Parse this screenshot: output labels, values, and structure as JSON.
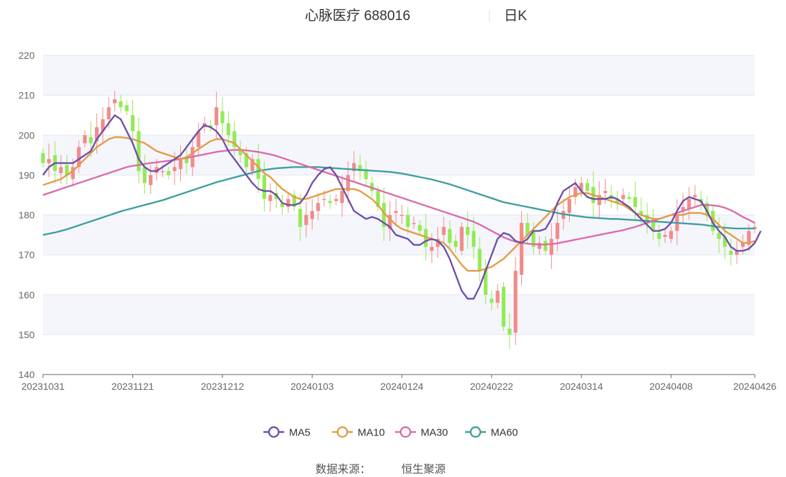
{
  "chart_data": {
    "type": "candlestick",
    "title": "心脉医疗 688016",
    "period": "日K",
    "yticks": [
      140,
      150,
      160,
      170,
      180,
      190,
      200,
      210,
      220
    ],
    "ylim": [
      140,
      220
    ],
    "xtick_labels": [
      "20231031",
      "20231121",
      "20231212",
      "20240103",
      "20240124",
      "20240222",
      "20240314",
      "20240408",
      "20240426"
    ],
    "xtick_index": [
      0,
      15,
      30,
      45,
      60,
      75,
      90,
      105,
      119
    ],
    "n_days": 120,
    "colors": {
      "up": "#f28b8b",
      "down": "#93ea56",
      "ma5": "#6f4ea8",
      "ma10": "#e49b45",
      "ma30": "#db6aae",
      "ma60": "#3e9ea0"
    },
    "legend": [
      "MA5",
      "MA10",
      "MA30",
      "MA60"
    ],
    "closes": [
      193,
      194,
      191,
      192,
      190,
      192,
      197,
      200,
      198,
      202,
      204,
      207,
      209,
      207,
      206,
      201,
      191,
      188,
      190,
      192,
      191,
      190,
      192,
      194,
      193,
      197,
      201,
      203,
      202,
      207,
      203,
      200,
      197,
      195,
      192,
      194,
      189,
      184,
      185,
      184,
      182,
      184,
      182,
      177,
      180,
      181,
      183,
      184,
      183,
      184,
      186,
      190,
      193,
      191,
      189,
      186,
      182,
      177,
      180,
      181,
      180,
      177,
      178,
      176,
      172,
      172,
      174,
      177,
      173,
      172,
      177,
      175,
      172,
      166,
      160,
      158,
      161,
      152,
      150,
      166,
      178,
      175,
      172,
      173,
      171,
      174,
      178,
      181,
      184,
      187,
      188,
      186,
      183,
      185,
      186,
      184,
      183,
      185,
      184,
      182,
      180,
      178,
      176,
      174,
      175,
      176,
      180,
      182,
      184,
      185,
      183,
      180,
      176,
      174,
      172,
      170,
      171,
      173,
      176,
      177
    ],
    "ma5": [
      190,
      192,
      193,
      193,
      193,
      193,
      194,
      195,
      196,
      199,
      201,
      203,
      205,
      204,
      201,
      198,
      194,
      192,
      191,
      191,
      192,
      193,
      194,
      195,
      197,
      199,
      201,
      202.5,
      202,
      201,
      199,
      196,
      194,
      192,
      190,
      188,
      186.5,
      186,
      186,
      185,
      183,
      182.5,
      182.5,
      183,
      185,
      188,
      190,
      191.5,
      192,
      190,
      187,
      184,
      181,
      180,
      179,
      179.5,
      179,
      178,
      177,
      175,
      174.5,
      174,
      172.5,
      172.5,
      173.5,
      174,
      173.5,
      172,
      169,
      165,
      161,
      159,
      159,
      162,
      166,
      170,
      174,
      175.5,
      175,
      173.5,
      173,
      174,
      176,
      176,
      176.5,
      179,
      183,
      186,
      187,
      188,
      186,
      184.5,
      184,
      184,
      184,
      184.5,
      184,
      183,
      182,
      180.5,
      179,
      177.5,
      176,
      176,
      176.5,
      178,
      181,
      183.5,
      184.5,
      184,
      183.5,
      181,
      178,
      176,
      174.5,
      172,
      171,
      171,
      171.5,
      173,
      176
    ],
    "ma10": [
      187.5,
      188,
      188.5,
      189,
      190,
      191,
      192.5,
      194,
      195.5,
      197,
      198,
      199,
      199.5,
      199.5,
      199.3,
      199,
      198.5,
      198,
      197,
      196,
      195.5,
      195,
      194.5,
      194,
      194.5,
      195.5,
      196.5,
      197.5,
      198.5,
      199,
      199,
      198.5,
      198,
      196.5,
      195,
      193.5,
      192,
      190.5,
      189.5,
      188,
      186.5,
      185.5,
      184.5,
      184,
      184,
      184.5,
      185,
      185.5,
      186,
      186.5,
      186.5,
      186.5,
      186.5,
      186,
      185,
      184,
      182.5,
      180.5,
      179,
      177.5,
      176.5,
      176,
      175.5,
      175,
      174.5,
      174,
      173.5,
      173,
      171.5,
      169.5,
      167.5,
      166,
      166,
      166,
      166.5,
      167,
      168,
      169,
      170.5,
      172,
      173.5,
      175,
      176.5,
      178,
      179.5,
      181,
      182.5,
      183.5,
      184.5,
      185,
      185.5,
      185.5,
      185,
      184.5,
      184,
      183.5,
      183,
      182.5,
      181.5,
      180.5,
      180,
      179.5,
      179,
      179,
      179.5,
      180,
      180,
      180,
      180.5,
      180.5,
      180.5,
      180,
      179,
      177.5,
      176,
      175,
      174,
      173,
      173,
      173.5
    ],
    "ma30": [
      185,
      185.5,
      186,
      186.5,
      187,
      187.5,
      188,
      188.5,
      189,
      189.5,
      190,
      190.5,
      191,
      191.5,
      192,
      192.3,
      192.5,
      192.8,
      193,
      193.2,
      193.4,
      193.6,
      193.8,
      194,
      194.3,
      194.6,
      194.9,
      195.2,
      195.5,
      195.8,
      196,
      196.2,
      196.3,
      196.3,
      196.2,
      196,
      195.8,
      195.5,
      195.2,
      194.8,
      194.3,
      193.8,
      193.3,
      192.8,
      192.3,
      191.8,
      191.3,
      190.8,
      190.3,
      189.8,
      189.3,
      188.8,
      188.3,
      187.8,
      187.3,
      186.8,
      186.3,
      185.8,
      185.3,
      184.8,
      184.3,
      183.8,
      183.3,
      182.8,
      182.3,
      181.8,
      181.3,
      180.8,
      180.3,
      179.8,
      179.3,
      178.8,
      178.3,
      177.6,
      176.8,
      176,
      175.2,
      174.4,
      173.8,
      173.3,
      173,
      172.8,
      172.7,
      172.6,
      172.6,
      172.7,
      172.9,
      173.2,
      173.5,
      173.8,
      174.1,
      174.4,
      174.7,
      175,
      175.3,
      175.6,
      175.9,
      176.2,
      176.6,
      177,
      177.5,
      178,
      178.5,
      179,
      179.5,
      180,
      180.5,
      181,
      181.5,
      182,
      182.5,
      182.5,
      182.4,
      182.2,
      181.8,
      181.2,
      180.4,
      179.5,
      178.8,
      178
    ],
    "ma60": [
      175,
      175.3,
      175.6,
      176,
      176.4,
      176.9,
      177.4,
      177.9,
      178.4,
      178.9,
      179.4,
      179.9,
      180.4,
      180.9,
      181.3,
      181.7,
      182.1,
      182.5,
      182.9,
      183.3,
      183.7,
      184.2,
      184.7,
      185.2,
      185.7,
      186.2,
      186.7,
      187.2,
      187.7,
      188.2,
      188.6,
      189,
      189.4,
      189.8,
      190.2,
      190.6,
      191,
      191.3,
      191.5,
      191.7,
      191.8,
      191.9,
      192,
      192,
      192,
      192,
      192,
      191.9,
      191.8,
      191.7,
      191.6,
      191.5,
      191.4,
      191.3,
      191.2,
      191.1,
      191,
      190.9,
      190.8,
      190.6,
      190.4,
      190.1,
      189.8,
      189.5,
      189.2,
      188.9,
      188.5,
      188.1,
      187.7,
      187.2,
      186.7,
      186.2,
      185.7,
      185.2,
      184.7,
      184.2,
      183.7,
      183.2,
      182.9,
      182.6,
      182.3,
      182,
      181.7,
      181.4,
      181.1,
      180.8,
      180.5,
      180.2,
      180,
      179.8,
      179.6,
      179.4,
      179.3,
      179.2,
      179.1,
      179,
      179,
      178.9,
      178.8,
      178.7,
      178.6,
      178.5,
      178.4,
      178.3,
      178.2,
      178.1,
      178,
      177.9,
      177.8,
      177.7,
      177.6,
      177.4,
      177.2,
      177,
      176.8,
      176.7,
      176.6,
      176.6,
      176.6,
      176.6
    ]
  },
  "legend": {
    "items": [
      {
        "label": "MA5",
        "color": "#6f4ea8"
      },
      {
        "label": "MA10",
        "color": "#e49b45"
      },
      {
        "label": "MA30",
        "color": "#db6aae"
      },
      {
        "label": "MA60",
        "color": "#3e9ea0"
      }
    ]
  },
  "source": {
    "label": "数据来源：",
    "value": "恒生聚源"
  }
}
